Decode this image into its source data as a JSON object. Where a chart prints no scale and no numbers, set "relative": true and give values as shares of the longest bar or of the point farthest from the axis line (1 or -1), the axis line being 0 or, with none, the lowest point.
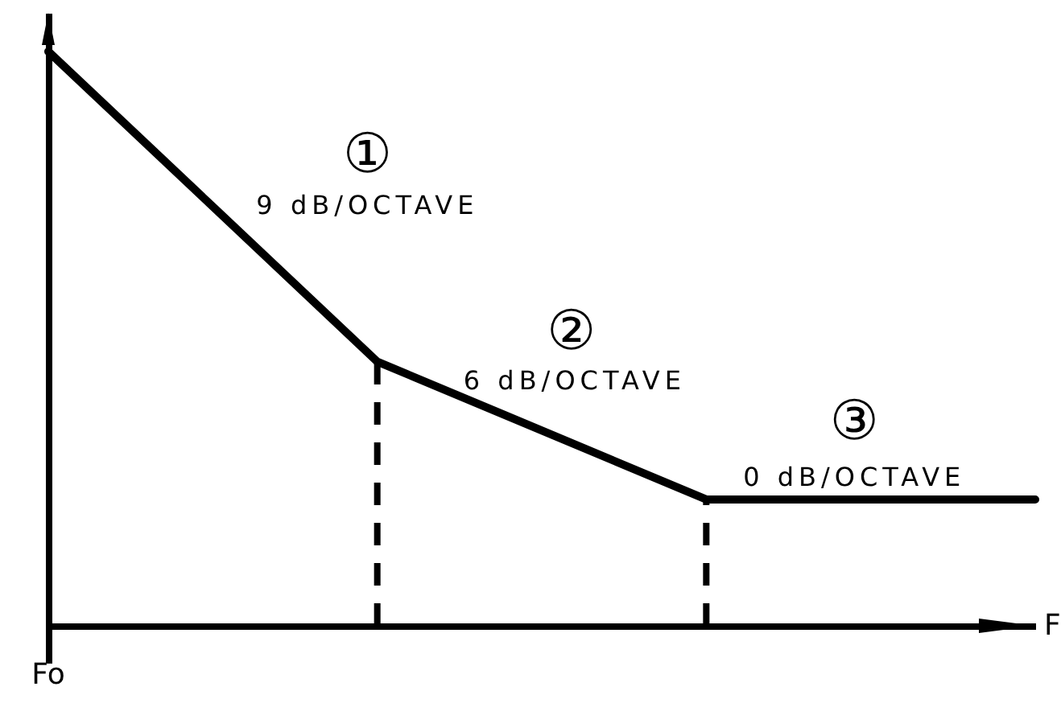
{
  "chart_data": {
    "type": "line",
    "relative": true,
    "xlabel": "F",
    "categories": [
      null,
      null,
      null,
      null
    ],
    "values": [
      1,
      0.46,
      0.22,
      0.22
    ],
    "color": "#000000",
    "annotations": [
      "①",
      "9 dB/OCTAVE",
      "②",
      "6 dB/OCTAVE",
      "③",
      "0 dB/OCTAVE",
      "Fo"
    ]
  }
}
